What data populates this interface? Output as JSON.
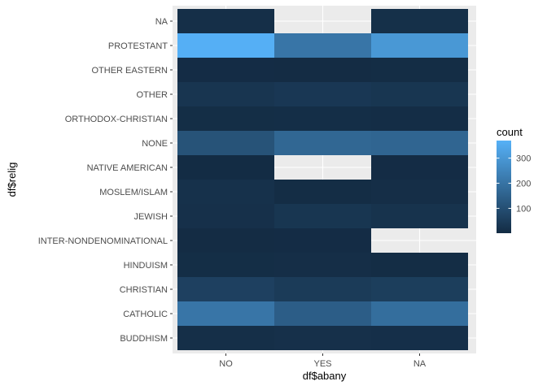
{
  "chart_data": {
    "type": "heatmap",
    "xlabel": "df$abany",
    "ylabel": "df$relig",
    "x_categories": [
      "NO",
      "YES",
      "NA"
    ],
    "y_categories": [
      "BUDDHISM",
      "CATHOLIC",
      "CHRISTIAN",
      "HINDUISM",
      "INTER-NONDENOMINATIONAL",
      "JEWISH",
      "MOSLEM/ISLAM",
      "NATIVE AMERICAN",
      "NONE",
      "ORTHODOX-CHRISTIAN",
      "OTHER",
      "OTHER EASTERN",
      "PROTESTANT",
      "NA"
    ],
    "cells": [
      {
        "x": "NO",
        "y": "BUDDHISM",
        "count": 12
      },
      {
        "x": "YES",
        "y": "BUDDHISM",
        "count": 15
      },
      {
        "x": "NA",
        "y": "BUDDHISM",
        "count": 13
      },
      {
        "x": "NO",
        "y": "CATHOLIC",
        "count": 205
      },
      {
        "x": "YES",
        "y": "CATHOLIC",
        "count": 140
      },
      {
        "x": "NA",
        "y": "CATHOLIC",
        "count": 185
      },
      {
        "x": "NO",
        "y": "CHRISTIAN",
        "count": 60
      },
      {
        "x": "YES",
        "y": "CHRISTIAN",
        "count": 45
      },
      {
        "x": "NA",
        "y": "CHRISTIAN",
        "count": 52
      },
      {
        "x": "NO",
        "y": "HINDUISM",
        "count": 8
      },
      {
        "x": "YES",
        "y": "HINDUISM",
        "count": 10
      },
      {
        "x": "NA",
        "y": "HINDUISM",
        "count": 6
      },
      {
        "x": "NO",
        "y": "INTER-NONDENOMINATIONAL",
        "count": 4
      },
      {
        "x": "YES",
        "y": "INTER-NONDENOMINATIONAL",
        "count": 5
      },
      {
        "x": "NO",
        "y": "JEWISH",
        "count": 16
      },
      {
        "x": "YES",
        "y": "JEWISH",
        "count": 30
      },
      {
        "x": "NA",
        "y": "JEWISH",
        "count": 22
      },
      {
        "x": "NO",
        "y": "MOSLEM/ISLAM",
        "count": 18
      },
      {
        "x": "YES",
        "y": "MOSLEM/ISLAM",
        "count": 6
      },
      {
        "x": "NA",
        "y": "MOSLEM/ISLAM",
        "count": 10
      },
      {
        "x": "NO",
        "y": "NATIVE AMERICAN",
        "count": 3
      },
      {
        "x": "NA",
        "y": "NATIVE AMERICAN",
        "count": 5
      },
      {
        "x": "NO",
        "y": "NONE",
        "count": 110
      },
      {
        "x": "YES",
        "y": "NONE",
        "count": 165
      },
      {
        "x": "NA",
        "y": "NONE",
        "count": 160
      },
      {
        "x": "NO",
        "y": "ORTHODOX-CHRISTIAN",
        "count": 8
      },
      {
        "x": "YES",
        "y": "ORTHODOX-CHRISTIAN",
        "count": 9
      },
      {
        "x": "NA",
        "y": "ORTHODOX-CHRISTIAN",
        "count": 7
      },
      {
        "x": "NO",
        "y": "OTHER",
        "count": 28
      },
      {
        "x": "YES",
        "y": "OTHER",
        "count": 35
      },
      {
        "x": "NA",
        "y": "OTHER",
        "count": 30
      },
      {
        "x": "NO",
        "y": "OTHER EASTERN",
        "count": 5
      },
      {
        "x": "YES",
        "y": "OTHER EASTERN",
        "count": 4
      },
      {
        "x": "NA",
        "y": "OTHER EASTERN",
        "count": 6
      },
      {
        "x": "NO",
        "y": "PROTESTANT",
        "count": 365
      },
      {
        "x": "YES",
        "y": "PROTESTANT",
        "count": 205
      },
      {
        "x": "NA",
        "y": "PROTESTANT",
        "count": 300
      },
      {
        "x": "NO",
        "y": "NA",
        "count": 12
      },
      {
        "x": "NA",
        "y": "NA",
        "count": 14
      }
    ],
    "legend": {
      "title": "count",
      "min": 1,
      "max": 370,
      "breaks": [
        100,
        200,
        300
      ],
      "low_color": "#132B43",
      "high_color": "#56B1F7",
      "placement": "right"
    },
    "panel_background": "#EBEBEB",
    "grid": true
  }
}
